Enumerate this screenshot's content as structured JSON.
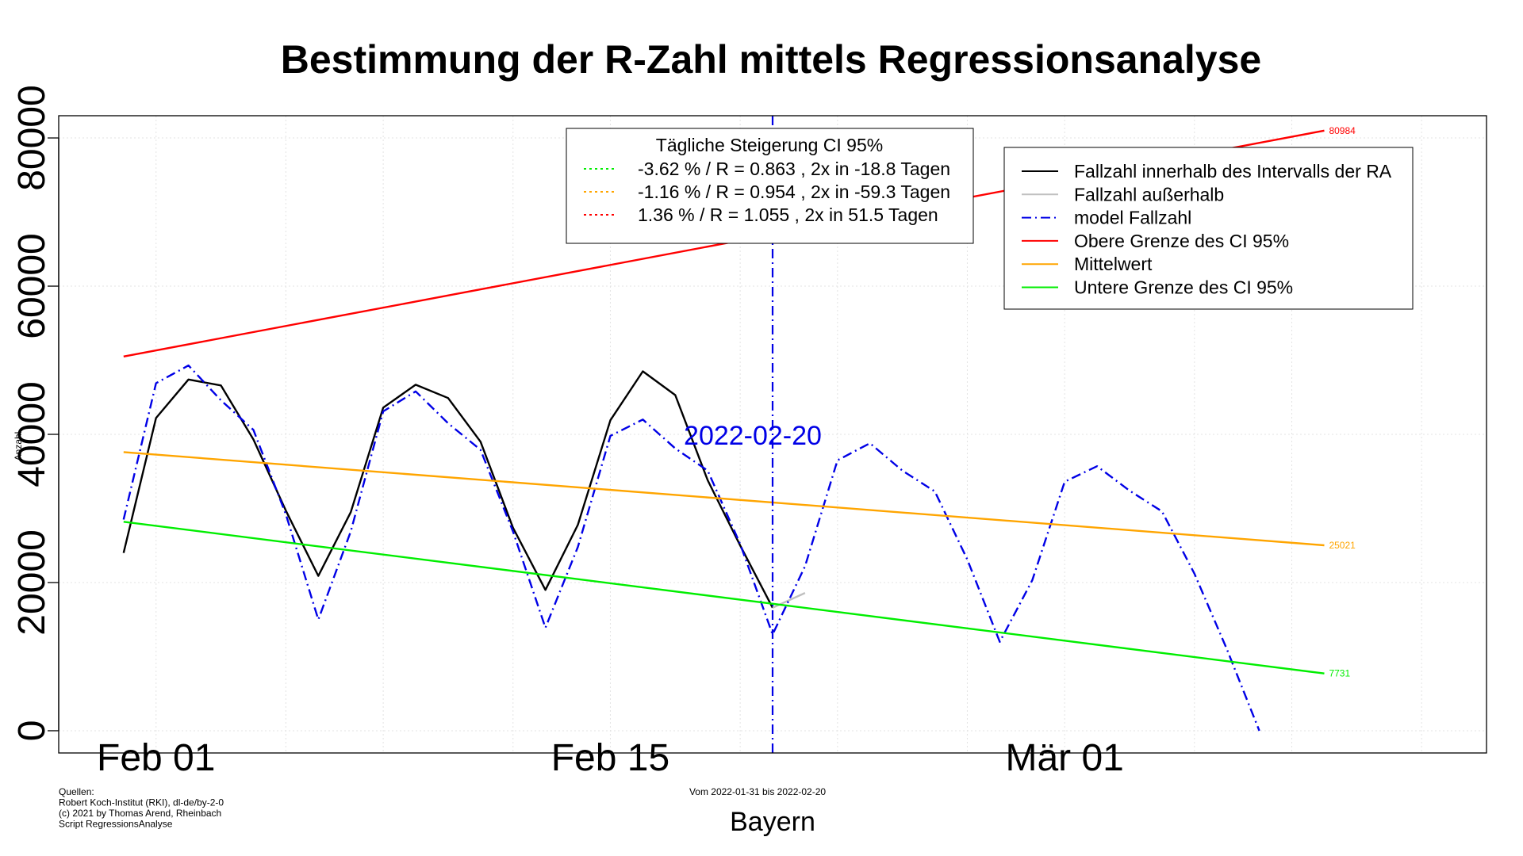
{
  "chart_data": {
    "type": "line",
    "title": "Bestimmung der R-Zahl mittels Regressionsanalyse",
    "ylabel": "Anzahl",
    "xlabel": "Bayern",
    "ylim": [
      -3000,
      83000
    ],
    "xlim": [
      "2022-01-29",
      "2022-03-14"
    ],
    "grid": true,
    "y_ticks": [
      0,
      20000,
      40000,
      60000,
      80000
    ],
    "y_tick_labels": [
      "0",
      "20000",
      "40000",
      "60000",
      "80000"
    ],
    "x_ticks": [
      {
        "date": "2022-02-01",
        "label": "Feb 01"
      },
      {
        "date": "2022-02-15",
        "label": "Feb 15"
      },
      {
        "date": "2022-03-01",
        "label": "Mär 01"
      }
    ],
    "x_grid_dates": [
      "2022-01-29",
      "2022-02-01",
      "2022-02-05",
      "2022-02-08",
      "2022-02-12",
      "2022-02-15",
      "2022-02-19",
      "2022-02-22",
      "2022-02-26",
      "2022-03-01",
      "2022-03-05",
      "2022-03-08",
      "2022-03-12"
    ],
    "vline": {
      "date": "2022-02-20",
      "label": "2022-02-20",
      "color": "#0000e6"
    },
    "series": [
      {
        "name": "Fallzahl innerhalb des Intervalls der RA",
        "color": "#000000",
        "style": "solid",
        "x": [
          "2022-01-31",
          "2022-02-01",
          "2022-02-02",
          "2022-02-03",
          "2022-02-04",
          "2022-02-05",
          "2022-02-06",
          "2022-02-07",
          "2022-02-08",
          "2022-02-09",
          "2022-02-10",
          "2022-02-11",
          "2022-02-12",
          "2022-02-13",
          "2022-02-14",
          "2022-02-15",
          "2022-02-16",
          "2022-02-17",
          "2022-02-18",
          "2022-02-19",
          "2022-02-20"
        ],
        "y": [
          24000,
          42200,
          47400,
          46600,
          39300,
          29700,
          20900,
          29500,
          43600,
          46700,
          44900,
          39000,
          27400,
          19000,
          27800,
          41900,
          48500,
          45300,
          33800,
          25000,
          16600
        ]
      },
      {
        "name": "Fallzahl außerhalb",
        "color": "#c0c0c0",
        "style": "solid",
        "x": [
          "2022-02-20",
          "2022-02-21"
        ],
        "y": [
          16600,
          18600
        ]
      },
      {
        "name": "model Fallzahl",
        "color": "#0000e6",
        "style": "dashdot",
        "x": [
          "2022-01-31",
          "2022-02-01",
          "2022-02-02",
          "2022-02-03",
          "2022-02-04",
          "2022-02-05",
          "2022-02-06",
          "2022-02-07",
          "2022-02-08",
          "2022-02-09",
          "2022-02-10",
          "2022-02-11",
          "2022-02-12",
          "2022-02-13",
          "2022-02-14",
          "2022-02-15",
          "2022-02-16",
          "2022-02-17",
          "2022-02-18",
          "2022-02-19",
          "2022-02-20",
          "2022-02-21",
          "2022-02-22",
          "2022-02-23",
          "2022-02-24",
          "2022-02-25",
          "2022-02-26",
          "2022-02-27",
          "2022-02-28",
          "2022-03-01",
          "2022-03-02",
          "2022-03-03",
          "2022-03-04",
          "2022-03-05",
          "2022-03-06",
          "2022-03-07"
        ],
        "y": [
          28500,
          46900,
          49300,
          44600,
          40600,
          29200,
          15000,
          26900,
          43100,
          45800,
          41500,
          37900,
          26900,
          13900,
          24800,
          39800,
          42000,
          38100,
          35100,
          25200,
          13000,
          22200,
          36500,
          38800,
          35100,
          32300,
          23100,
          12000,
          20300,
          33600,
          35700,
          32400,
          29600,
          21200,
          11000,
          0
        ]
      },
      {
        "name": "Obere Grenze des CI 95%",
        "color": "#ff0000",
        "style": "solid",
        "growth_percent_per_day": 1.36,
        "x": [
          "2022-01-31",
          "2022-03-09"
        ],
        "y": [
          50500,
          80984
        ],
        "end_label": "80984"
      },
      {
        "name": "Mittelwert",
        "color": "#ffa500",
        "style": "solid",
        "growth_percent_per_day": -1.16,
        "x": [
          "2022-01-31",
          "2022-03-09"
        ],
        "y": [
          37600,
          25021
        ],
        "end_label": "25021"
      },
      {
        "name": "Untere Grenze des CI 95%",
        "color": "#00ee00",
        "style": "solid",
        "growth_percent_per_day": -3.62,
        "x": [
          "2022-01-31",
          "2022-03-09"
        ],
        "y": [
          28200,
          7731
        ],
        "end_label": "7731"
      }
    ],
    "legend_ci": {
      "title": "Tägliche Steigerung CI  95%",
      "entries": [
        {
          "label": "-3.62 % / R = 0.863 , 2x in -18.8 Tagen",
          "color": "#00ee00"
        },
        {
          "label": "-1.16 % / R = 0.954 , 2x in -59.3 Tagen",
          "color": "#ffa500"
        },
        {
          "label": "1.36 % / R = 1.055 , 2x in 51.5 Tagen",
          "color": "#ff0000"
        }
      ]
    },
    "legend_series": {
      "entries": [
        {
          "label": "Fallzahl innerhalb des Intervalls der RA",
          "color": "#000000",
          "style": "solid"
        },
        {
          "label": "Fallzahl außerhalb",
          "color": "#c0c0c0",
          "style": "solid"
        },
        {
          "label": "model Fallzahl",
          "color": "#0000e6",
          "style": "dashdot"
        },
        {
          "label": "Obere Grenze des CI 95%",
          "color": "#ff0000",
          "style": "solid"
        },
        {
          "label": "Mittelwert",
          "color": "#ffa500",
          "style": "solid"
        },
        {
          "label": "Untere Grenze des CI 95%",
          "color": "#00ee00",
          "style": "solid"
        }
      ]
    },
    "footnote_sources": [
      "Quellen:",
      "Robert Koch-Institut (RKI), dl-de/by-2-0",
      "(c) 2021 by Thomas Arend, Rheinbach",
      "Script RegressionsAnalyse"
    ],
    "period_text": "Vom 2022-01-31 bis 2022-02-20"
  }
}
